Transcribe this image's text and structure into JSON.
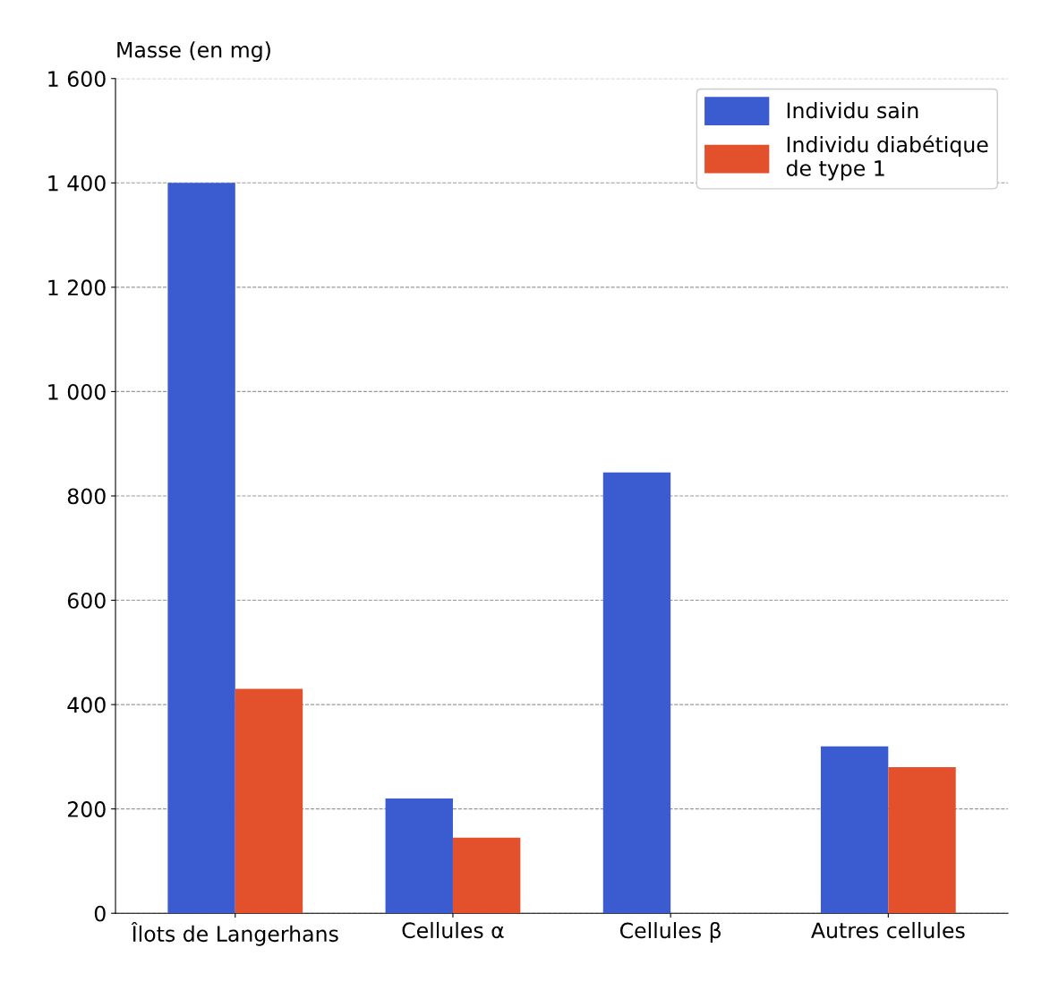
{
  "chart_data": {
    "type": "bar",
    "ylabel": "Masse (en mg)",
    "categories": [
      "Îlots de Langerhans",
      "Cellules α",
      "Cellules β",
      "Autres cellules"
    ],
    "series": [
      {
        "name": "Individu sain",
        "color": "#3b5bd0",
        "values": [
          1400,
          220,
          845,
          320
        ]
      },
      {
        "name": "Individu diabétique\nde type 1",
        "color": "#e2502c",
        "values": [
          430,
          145,
          null,
          280
        ]
      }
    ],
    "ylim": [
      0,
      1600
    ],
    "yticks": [
      0,
      200,
      400,
      600,
      800,
      {
        "value": 1000,
        "label": "1 000"
      },
      {
        "value": 1200,
        "label": "1 200"
      },
      {
        "value": 1400,
        "label": "1 400"
      },
      {
        "value": 1600,
        "label": "1 600"
      }
    ],
    "grid": "y",
    "legend": "top right"
  }
}
